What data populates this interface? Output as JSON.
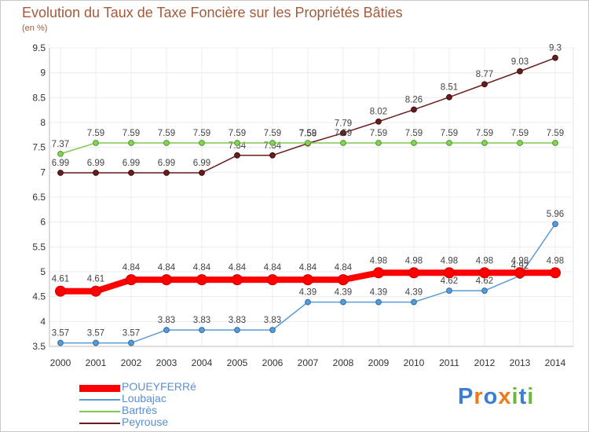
{
  "title": "Evolution du Taux de Taxe Foncière sur les Propriétés Bâties",
  "unit_label": "(en %)",
  "logo_text": "Proxiti",
  "chart_data": {
    "type": "line",
    "title": "Evolution du Taux de Taxe Foncière sur les Propriétés Bâties",
    "xlabel": "",
    "ylabel": "(en %)",
    "categories": [
      "2000",
      "2001",
      "2002",
      "2003",
      "2004",
      "2005",
      "2006",
      "2007",
      "2008",
      "2009",
      "2010",
      "2011",
      "2012",
      "2013",
      "2014"
    ],
    "yticks": [
      "3.5",
      "4",
      "4.5",
      "5",
      "5.5",
      "6",
      "6.5",
      "7",
      "7.5",
      "8",
      "8.5",
      "9",
      "9.5"
    ],
    "ylim": [
      3.5,
      9.5
    ],
    "grid": true,
    "legend_position": "bottom-left",
    "series": [
      {
        "name": "Peyrouse",
        "color": "#6b1c1c",
        "values": [
          6.99,
          6.99,
          6.99,
          6.99,
          6.99,
          7.34,
          7.34,
          7.58,
          7.79,
          8.02,
          8.26,
          8.51,
          8.77,
          9.03,
          9.3
        ],
        "labels": [
          "6.99",
          "6.99",
          "6.99",
          "6.99",
          "6.99",
          "7.34",
          "7.34",
          "7.58",
          "7.79",
          "8.02",
          "8.26",
          "8.51",
          "8.77",
          "9.03",
          "9.3"
        ]
      },
      {
        "name": "Bartrès",
        "color": "#7ec850",
        "values": [
          7.37,
          7.59,
          7.59,
          7.59,
          7.59,
          7.59,
          7.59,
          7.59,
          7.59,
          7.59,
          7.59,
          7.59,
          7.59,
          7.59,
          7.59
        ],
        "labels": [
          "7.37",
          "7.59",
          "7.59",
          "7.59",
          "7.59",
          "7.59",
          "7.59",
          "7.59",
          "7.59",
          "7.59",
          "7.59",
          "7.59",
          "7.59",
          "7.59",
          "7.59"
        ]
      },
      {
        "name": "Loubajac",
        "color": "#5b9bd5",
        "values": [
          3.57,
          3.57,
          3.57,
          3.83,
          3.83,
          3.83,
          3.83,
          4.39,
          4.39,
          4.39,
          4.39,
          4.62,
          4.62,
          4.92,
          5.96
        ],
        "labels": [
          "3.57",
          "3.57",
          "3.57",
          "3.83",
          "3.83",
          "3.83",
          "3.83",
          "4.39",
          "4.39",
          "4.39",
          "4.39",
          "4.62",
          "4.62",
          "4.92",
          "5.96"
        ]
      },
      {
        "name": "POUEYFERRé",
        "color": "#ff0000",
        "values": [
          4.61,
          4.61,
          4.84,
          4.84,
          4.84,
          4.84,
          4.84,
          4.84,
          4.84,
          4.98,
          4.98,
          4.98,
          4.98,
          4.98,
          4.98
        ],
        "labels": [
          "4.61",
          "4.61",
          "4.84",
          "4.84",
          "4.84",
          "4.84",
          "4.84",
          "4.84",
          "4.84",
          "4.98",
          "4.98",
          "4.98",
          "4.98",
          "4.98",
          "4.98"
        ]
      }
    ],
    "legend": [
      "POUEYFERRé",
      "Loubajac",
      "Bartrès",
      "Peyrouse"
    ]
  }
}
